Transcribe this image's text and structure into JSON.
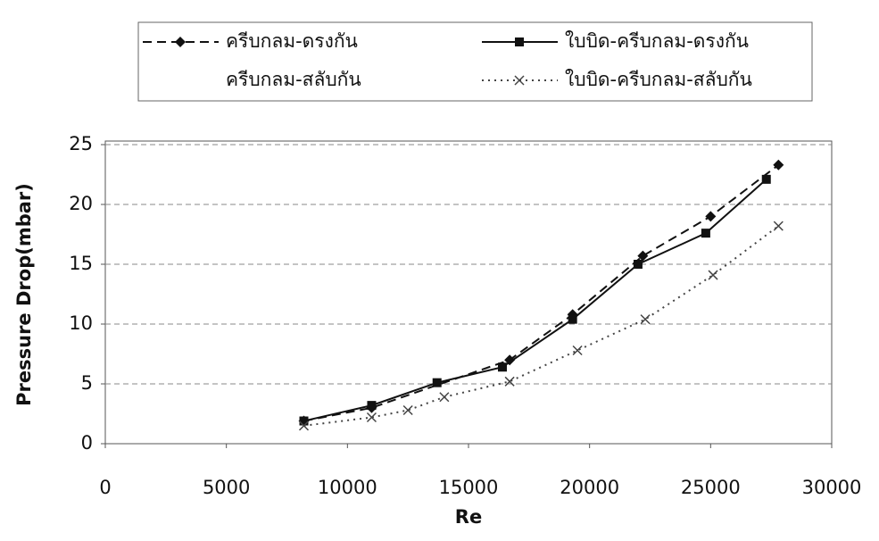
{
  "chart_data": {
    "type": "line",
    "xlabel": "Re",
    "ylabel": "Pressure Drop(mbar)",
    "xlim": [
      0,
      30000
    ],
    "xticks": [
      0,
      5000,
      10000,
      15000,
      20000,
      25000,
      30000
    ],
    "ylim": [
      0,
      25
    ],
    "yticks": [
      0,
      5,
      10,
      15,
      20,
      25
    ],
    "grid": true,
    "series": [
      {
        "name": "ครีบกลม-ดรงกัน",
        "color": "#111",
        "dash": "10,6",
        "marker": "diamond",
        "x": [
          8200,
          11000,
          16700,
          19300,
          22200,
          25000,
          27800
        ],
        "values": [
          1.9,
          3.0,
          7.0,
          10.8,
          15.7,
          19.0,
          23.3
        ]
      },
      {
        "name": "ใบบิด-ครีบกลม-ดรงกัน",
        "color": "#111",
        "dash": "none",
        "marker": "square",
        "x": [
          8200,
          11000,
          13700,
          16400,
          19300,
          22000,
          24800,
          27300
        ],
        "values": [
          1.9,
          3.2,
          5.1,
          6.4,
          10.4,
          15.0,
          17.6,
          22.1
        ]
      },
      {
        "name": "ครีบกลม-สลับกัน",
        "color": "#ffffff",
        "dash": "none",
        "marker": "none",
        "x": [],
        "values": []
      },
      {
        "name": "ใบบิด-ครีบกลม-สลับกัน",
        "color": "#444",
        "dash": "2,5",
        "marker": "cross",
        "x": [
          8200,
          11000,
          12500,
          14000,
          16700,
          19500,
          22300,
          25100,
          27800
        ],
        "values": [
          1.5,
          2.2,
          2.8,
          3.9,
          5.2,
          7.8,
          10.4,
          14.1,
          18.2
        ]
      }
    ]
  }
}
